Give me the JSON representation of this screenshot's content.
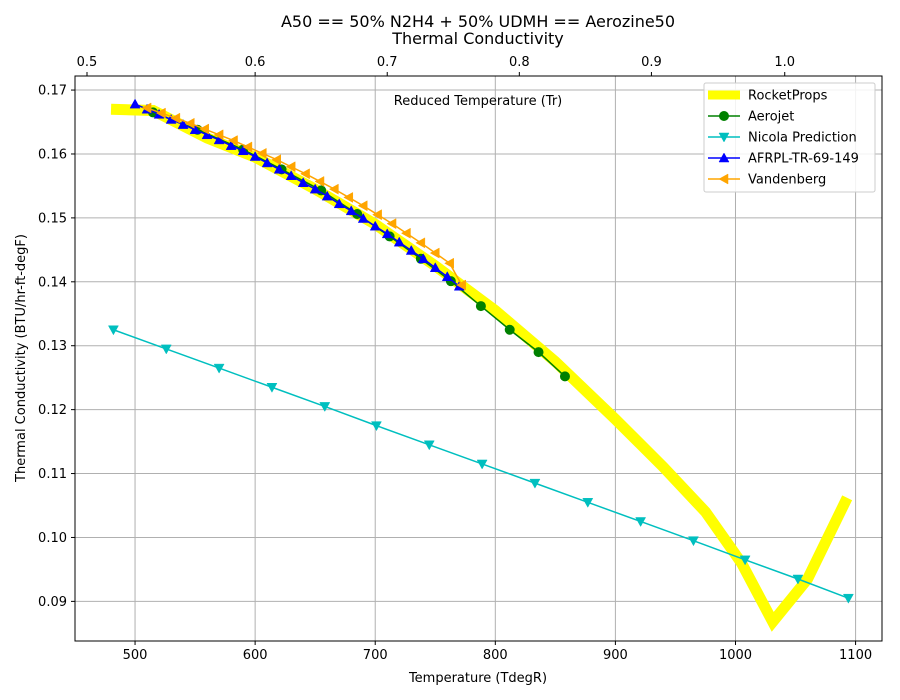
{
  "chart_data": {
    "type": "line",
    "title": "A50 == 50% N2H4 + 50% UDMH == Aerozine50",
    "subtitle": "Thermal Conductivity",
    "xlabel": "Temperature (TdegR)",
    "ylabel": "Thermal Conductivity (BTU/hr-ft-degF)",
    "top_axis_label": "Reduced Temperature (Tr)",
    "xlim": [
      450,
      1122
    ],
    "ylim": [
      0.0838,
      0.1722
    ],
    "xticks": [
      500,
      600,
      700,
      800,
      900,
      1000,
      1100
    ],
    "xtick_labels": [
      "500",
      "600",
      "700",
      "800",
      "900",
      "1000",
      "1100"
    ],
    "yticks": [
      0.09,
      0.1,
      0.11,
      0.12,
      0.13,
      0.14,
      0.15,
      0.16,
      0.17
    ],
    "ytick_labels": [
      "0.09",
      "0.10",
      "0.11",
      "0.12",
      "0.13",
      "0.14",
      "0.15",
      "0.16",
      "0.17"
    ],
    "top_ticks": [
      0.5,
      0.6,
      0.7,
      0.8,
      0.9,
      1.0
    ],
    "top_tick_labels": [
      "0.5",
      "0.6",
      "0.7",
      "0.8",
      "0.9",
      "1.0"
    ],
    "top_tick_temps": [
      460,
      600,
      710,
      820,
      930,
      1041
    ],
    "grid": true,
    "legend_position": "top-right",
    "series": [
      {
        "name": "RocketProps",
        "color": "#ffff00",
        "marker": "none",
        "x": [
          480,
          515,
          560,
          600,
          650,
          700,
          750,
          800,
          850,
          900,
          940,
          975,
          1005,
          1031,
          1060,
          1093
        ],
        "y": [
          0.167,
          0.1668,
          0.1625,
          0.1595,
          0.1545,
          0.149,
          0.1425,
          0.1355,
          0.1275,
          0.1185,
          0.111,
          0.104,
          0.096,
          0.0868,
          0.0935,
          0.1062
        ]
      },
      {
        "name": "Aerojet",
        "color": "#008000",
        "marker": "circle",
        "x": [
          515,
          552,
          590,
          622,
          655,
          685,
          712,
          738,
          763,
          788,
          812,
          836,
          858
        ],
        "y": [
          0.1665,
          0.1638,
          0.1607,
          0.1576,
          0.1543,
          0.1506,
          0.1471,
          0.1436,
          0.1401,
          0.1362,
          0.1325,
          0.129,
          0.1252
        ]
      },
      {
        "name": "Nicola Prediction",
        "color": "#00bfbf",
        "marker": "triangle-down",
        "x": [
          482,
          526,
          570,
          614,
          658,
          701,
          745,
          789,
          833,
          877,
          921,
          965,
          1008,
          1052,
          1094
        ],
        "y": [
          0.1325,
          0.1295,
          0.1265,
          0.1235,
          0.1205,
          0.1175,
          0.1145,
          0.1115,
          0.1085,
          0.1055,
          0.1025,
          0.0995,
          0.0965,
          0.0935,
          0.0905
        ]
      },
      {
        "name": "AFRPL-TR-69-149",
        "color": "#0000ff",
        "marker": "triangle-up",
        "x": [
          500,
          510,
          520,
          530,
          540,
          550,
          560,
          570,
          580,
          590,
          600,
          610,
          620,
          630,
          640,
          650,
          660,
          670,
          680,
          690,
          700,
          710,
          720,
          730,
          740,
          750,
          760,
          770
        ],
        "y": [
          0.1678,
          0.167,
          0.1662,
          0.1654,
          0.1646,
          0.1638,
          0.163,
          0.1622,
          0.1613,
          0.1605,
          0.1596,
          0.1586,
          0.1576,
          0.1566,
          0.1555,
          0.1545,
          0.1534,
          0.1522,
          0.1511,
          0.1499,
          0.1487,
          0.1475,
          0.1462,
          0.1449,
          0.1436,
          0.1422,
          0.1408,
          0.1393
        ]
      },
      {
        "name": "Vandenberg",
        "color": "#ffa500",
        "marker": "triangle-left",
        "x": [
          510,
          522,
          534,
          546,
          558,
          570,
          582,
          594,
          606,
          618,
          630,
          642,
          654,
          666,
          678,
          690,
          702,
          714,
          726,
          738,
          750,
          762,
          772
        ],
        "y": [
          0.1672,
          0.1664,
          0.1656,
          0.1648,
          0.1639,
          0.163,
          0.1621,
          0.1611,
          0.1601,
          0.1591,
          0.158,
          0.1569,
          0.1557,
          0.1545,
          0.1532,
          0.1519,
          0.1505,
          0.1491,
          0.1476,
          0.1461,
          0.1445,
          0.1429,
          0.1395
        ]
      }
    ]
  }
}
